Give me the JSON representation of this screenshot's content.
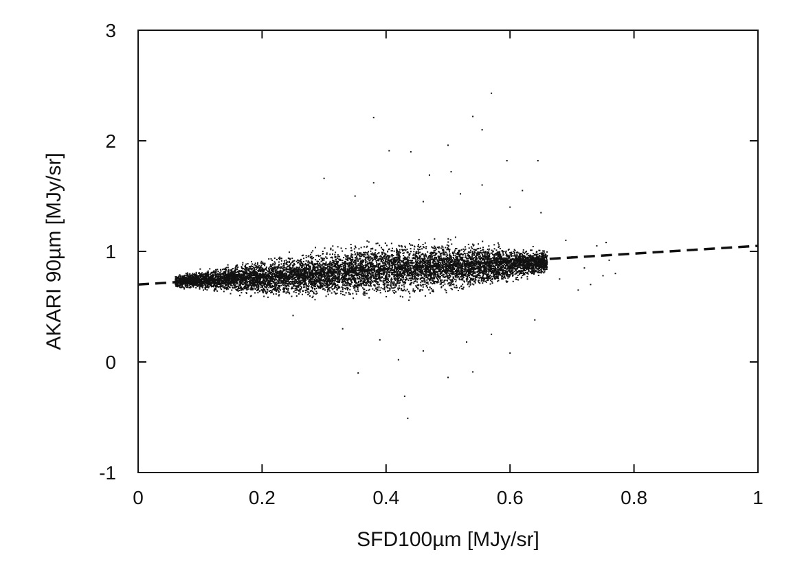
{
  "chart_data": {
    "type": "scatter",
    "title": "",
    "xlabel": "SFD100µm [MJy/sr]",
    "ylabel": "AKARI 90µm [MJy/sr]",
    "xlim": [
      0,
      1
    ],
    "ylim": [
      -1,
      3
    ],
    "x_ticks": [
      0,
      0.2,
      0.4,
      0.6,
      0.8,
      1
    ],
    "x_tick_labels": [
      "0",
      "0.2",
      "0.4",
      "0.6",
      "0.8",
      "1"
    ],
    "y_ticks": [
      -1,
      0,
      1,
      2,
      3
    ],
    "y_tick_labels": [
      "-1",
      "0",
      "1",
      "2",
      "3"
    ],
    "grid": false,
    "legend": "none",
    "colors": {
      "points": "#111111",
      "fit_line": "#111111",
      "frame": "#111111"
    },
    "fit_line": {
      "style": "dashed",
      "intercept": 0.7,
      "slope": 0.35,
      "x_range": [
        0,
        1
      ]
    },
    "dense_cloud": {
      "description_points": [
        {
          "x": 0.06,
          "y_center": 0.73,
          "y_spread": 0.04
        },
        {
          "x": 0.2,
          "y_center": 0.76,
          "y_spread": 0.12
        },
        {
          "x": 0.4,
          "y_center": 0.84,
          "y_spread": 0.18
        },
        {
          "x": 0.55,
          "y_center": 0.87,
          "y_spread": 0.15
        },
        {
          "x": 0.66,
          "y_center": 0.9,
          "y_spread": 0.08
        }
      ]
    },
    "outliers": [
      {
        "x": 0.57,
        "y": 2.43
      },
      {
        "x": 0.54,
        "y": 2.22
      },
      {
        "x": 0.38,
        "y": 2.21
      },
      {
        "x": 0.555,
        "y": 2.1
      },
      {
        "x": 0.5,
        "y": 1.96
      },
      {
        "x": 0.405,
        "y": 1.91
      },
      {
        "x": 0.595,
        "y": 1.82
      },
      {
        "x": 0.44,
        "y": 1.9
      },
      {
        "x": 0.645,
        "y": 1.82
      },
      {
        "x": 0.3,
        "y": 1.66
      },
      {
        "x": 0.47,
        "y": 1.69
      },
      {
        "x": 0.505,
        "y": 1.72
      },
      {
        "x": 0.38,
        "y": 1.62
      },
      {
        "x": 0.555,
        "y": 1.6
      },
      {
        "x": 0.62,
        "y": 1.55
      },
      {
        "x": 0.6,
        "y": 1.4
      },
      {
        "x": 0.46,
        "y": 1.45
      },
      {
        "x": 0.35,
        "y": 1.5
      },
      {
        "x": 0.52,
        "y": 1.52
      },
      {
        "x": 0.65,
        "y": 1.35
      },
      {
        "x": 0.43,
        "y": -0.31
      },
      {
        "x": 0.435,
        "y": -0.51
      },
      {
        "x": 0.355,
        "y": -0.1
      },
      {
        "x": 0.5,
        "y": -0.14
      },
      {
        "x": 0.54,
        "y": -0.09
      },
      {
        "x": 0.42,
        "y": 0.02
      },
      {
        "x": 0.46,
        "y": 0.1
      },
      {
        "x": 0.6,
        "y": 0.08
      },
      {
        "x": 0.39,
        "y": 0.2
      },
      {
        "x": 0.33,
        "y": 0.3
      },
      {
        "x": 0.53,
        "y": 0.18
      },
      {
        "x": 0.57,
        "y": 0.25
      },
      {
        "x": 0.25,
        "y": 0.42
      },
      {
        "x": 0.64,
        "y": 0.38
      },
      {
        "x": 0.7,
        "y": 0.95
      },
      {
        "x": 0.72,
        "y": 0.85
      },
      {
        "x": 0.74,
        "y": 1.05
      },
      {
        "x": 0.75,
        "y": 0.78
      },
      {
        "x": 0.76,
        "y": 0.92
      },
      {
        "x": 0.77,
        "y": 0.8
      },
      {
        "x": 0.69,
        "y": 1.1
      },
      {
        "x": 0.73,
        "y": 0.7
      },
      {
        "x": 0.755,
        "y": 1.08
      },
      {
        "x": 0.71,
        "y": 0.65
      },
      {
        "x": 0.68,
        "y": 0.75
      }
    ]
  }
}
